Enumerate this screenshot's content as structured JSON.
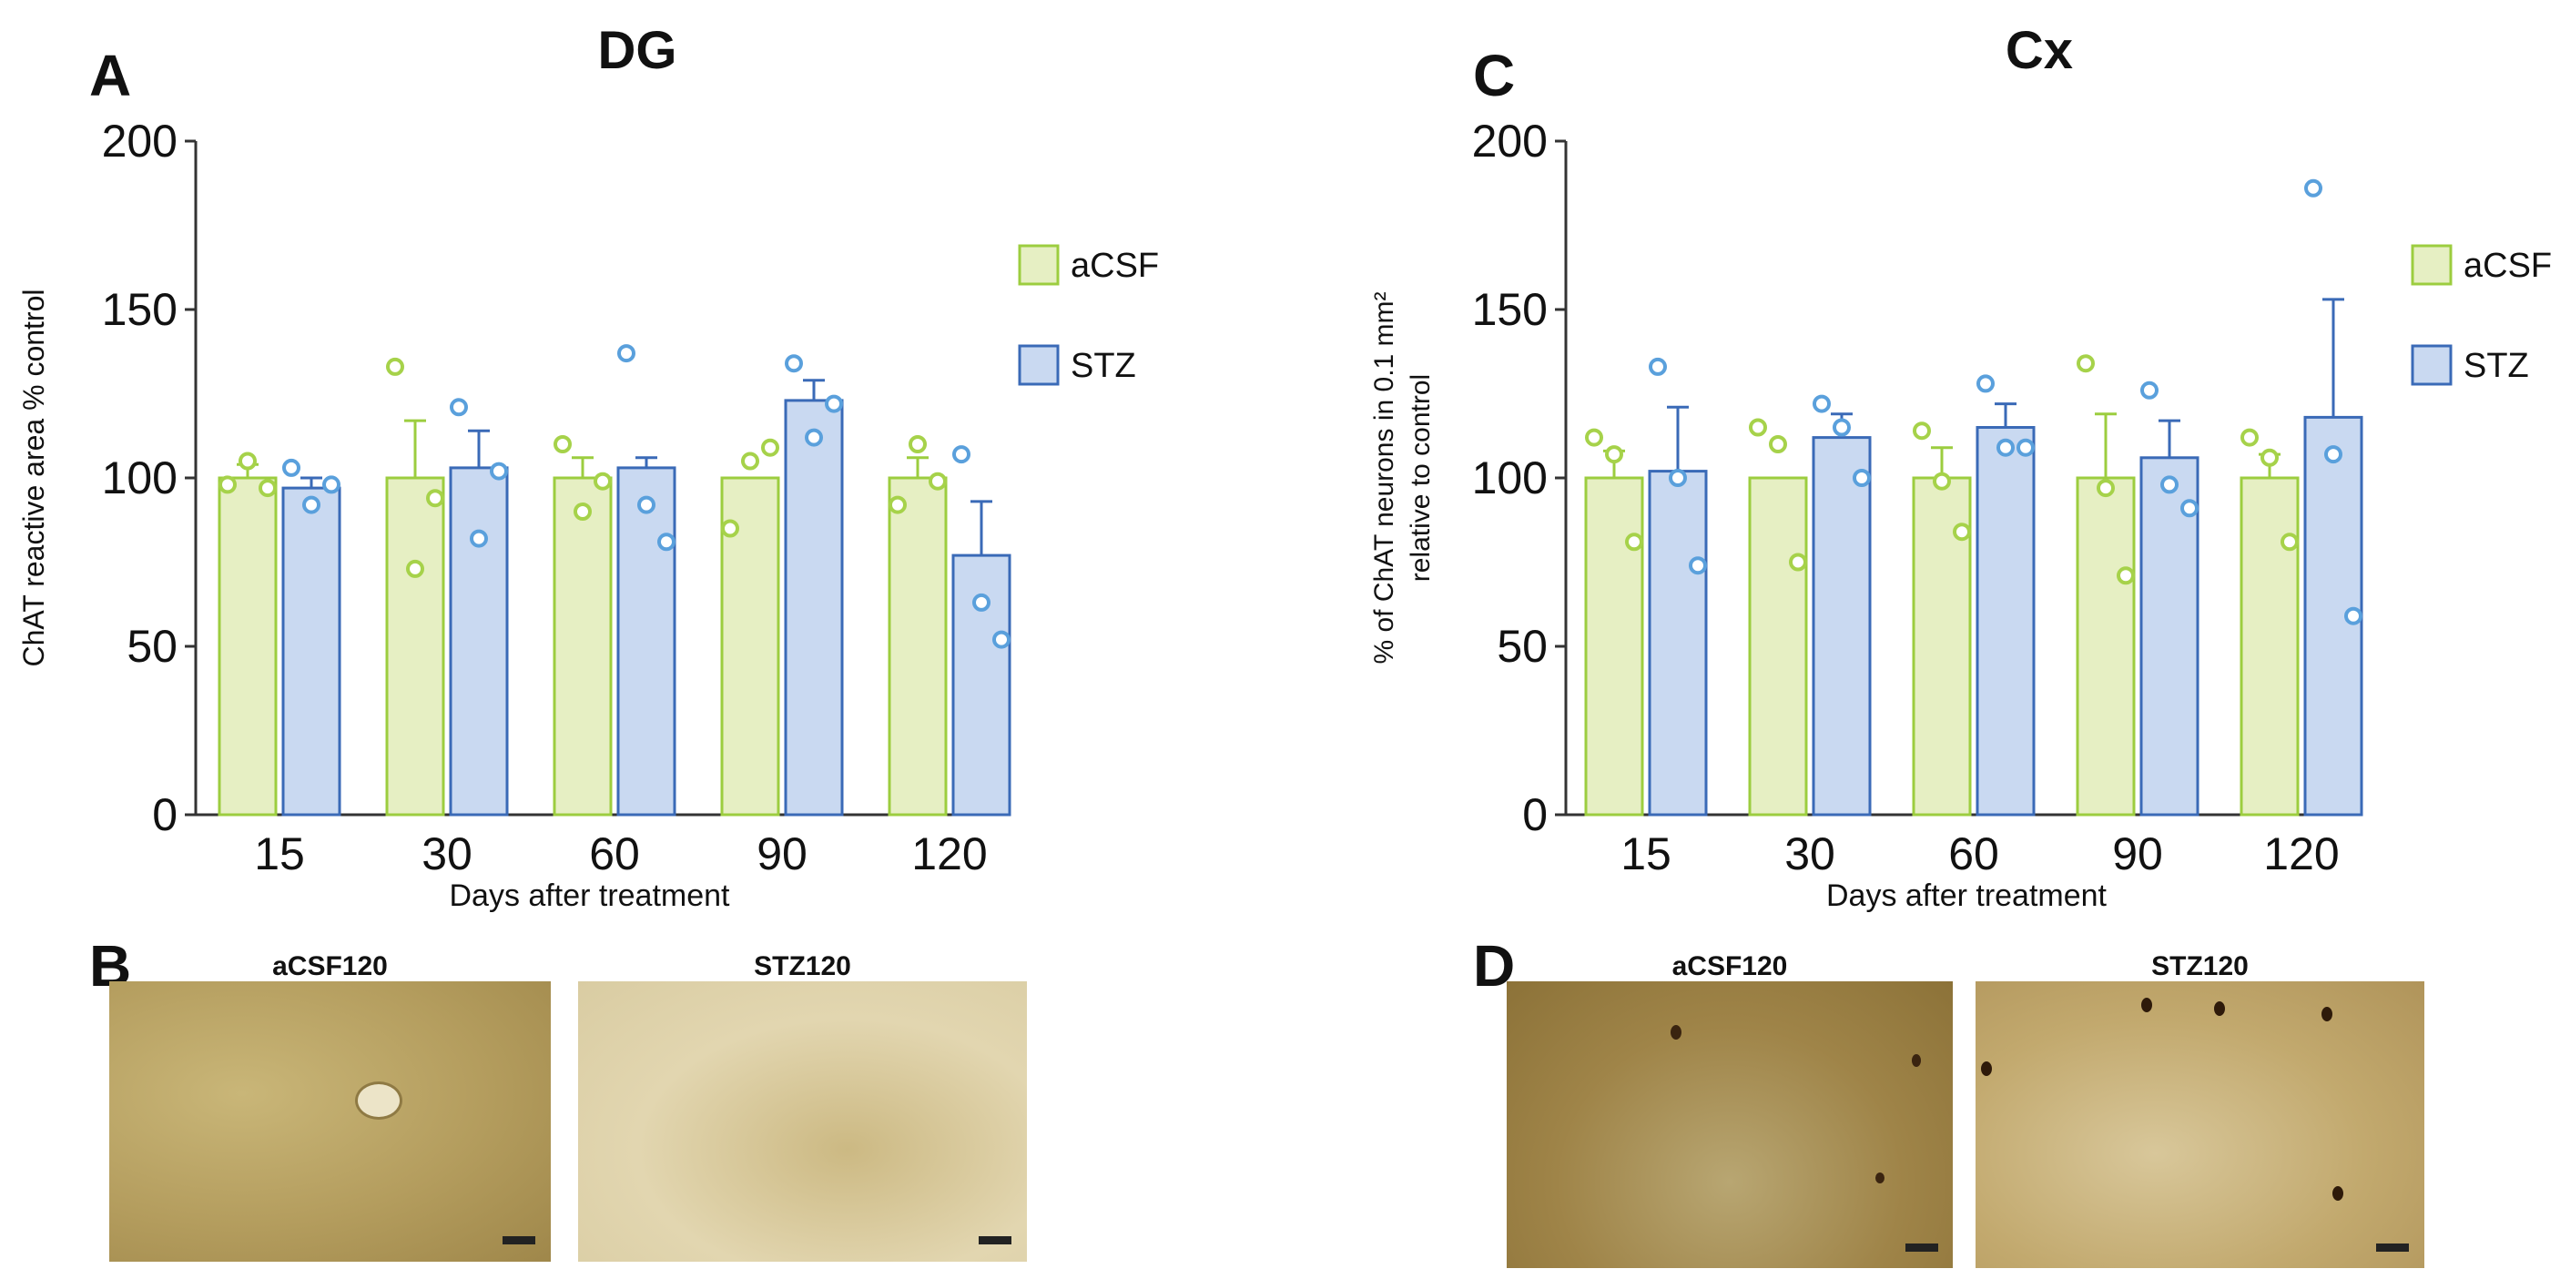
{
  "panels": {
    "A": "A",
    "B": "B",
    "C": "C",
    "D": "D"
  },
  "colors": {
    "acsf_fill": "#e6efc3",
    "acsf_edge": "#9ccd3f",
    "acsf_dot": "#a6d24a",
    "stz_fill": "#c9d9f1",
    "stz_edge": "#3a6ab7",
    "stz_dot": "#5aa0dc",
    "axis": "#333333"
  },
  "chart_data": [
    {
      "id": "DG",
      "type": "bar",
      "title": "DG",
      "xlabel": "Days after treatment",
      "ylabel": "ChAT reactive area % control",
      "ylim": [
        0,
        200
      ],
      "yticks": [
        0,
        50,
        100,
        150,
        200
      ],
      "categories": [
        "15",
        "30",
        "60",
        "90",
        "120"
      ],
      "legend": [
        "aCSF",
        "STZ"
      ],
      "legend_position": "right",
      "series": [
        {
          "name": "aCSF",
          "values": [
            100,
            100,
            100,
            100,
            100
          ],
          "errors": [
            4,
            17,
            6,
            0,
            6
          ],
          "points": [
            [
              98,
              105,
              97
            ],
            [
              133,
              73,
              94
            ],
            [
              110,
              90,
              99
            ],
            [
              85,
              105,
              109
            ],
            [
              92,
              110,
              99
            ]
          ]
        },
        {
          "name": "STZ",
          "values": [
            97,
            103,
            103,
            123,
            77
          ],
          "errors": [
            3,
            11,
            3,
            6,
            16
          ],
          "points": [
            [
              103,
              92,
              98
            ],
            [
              121,
              82,
              102
            ],
            [
              137,
              92,
              81
            ],
            [
              134,
              112,
              122
            ],
            [
              107,
              63,
              52
            ]
          ]
        }
      ]
    },
    {
      "id": "Cx",
      "type": "bar",
      "title": "Cx",
      "xlabel": "Days after treatment",
      "ylabel": [
        "% of ChAT neurons in 0.1 mm²",
        "relative to control"
      ],
      "ylim": [
        0,
        200
      ],
      "yticks": [
        0,
        50,
        100,
        150,
        200
      ],
      "categories": [
        "15",
        "30",
        "60",
        "90",
        "120"
      ],
      "legend": [
        "aCSF",
        "STZ"
      ],
      "legend_position": "right",
      "series": [
        {
          "name": "aCSF",
          "values": [
            100,
            100,
            100,
            100,
            100
          ],
          "errors": [
            8,
            0,
            9,
            19,
            7
          ],
          "points": [
            [
              112,
              107,
              81
            ],
            [
              115,
              110,
              75
            ],
            [
              114,
              99,
              84
            ],
            [
              134,
              97,
              71
            ],
            [
              112,
              106,
              81
            ]
          ]
        },
        {
          "name": "STZ",
          "values": [
            102,
            112,
            115,
            106,
            118
          ],
          "errors": [
            19,
            7,
            7,
            11,
            35
          ],
          "points": [
            [
              133,
              100,
              74
            ],
            [
              122,
              115,
              100
            ],
            [
              128,
              109,
              109
            ],
            [
              126,
              98,
              91
            ],
            [
              186,
              107,
              59
            ]
          ]
        }
      ]
    }
  ],
  "micrographs": [
    {
      "label": "aCSF120",
      "tone": "#b9a262"
    },
    {
      "label": "STZ120",
      "tone": "#d6c79a"
    },
    {
      "label": "aCSF120",
      "tone": "#a68a4e"
    },
    {
      "label": "STZ120",
      "tone": "#c7ad76"
    }
  ]
}
